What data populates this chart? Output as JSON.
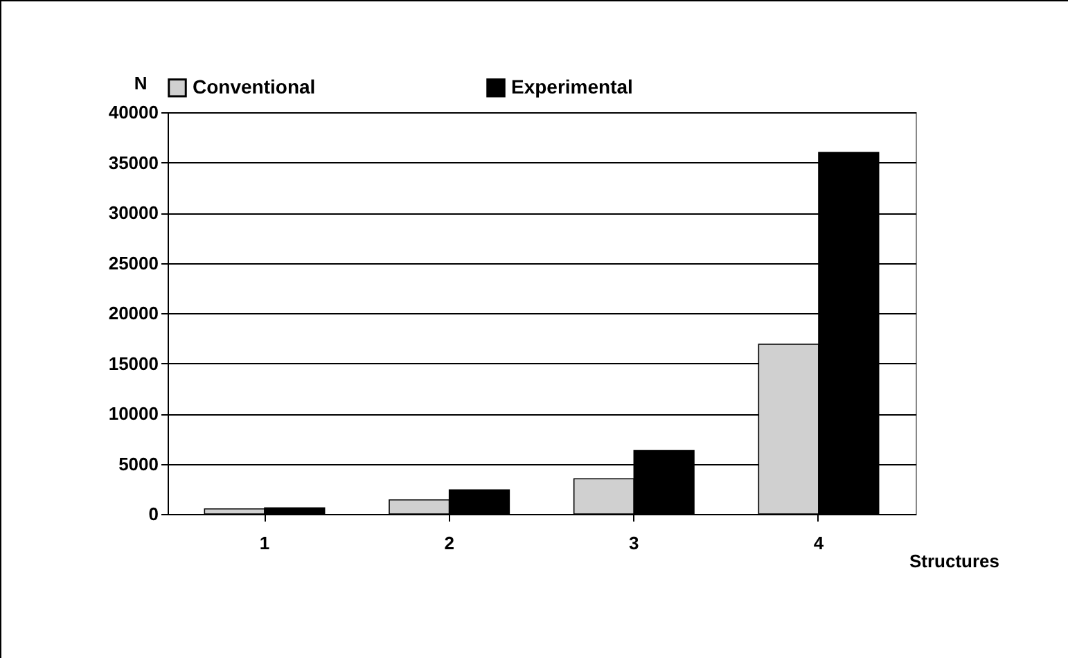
{
  "chart_data": {
    "type": "bar",
    "xlabel": "Structures",
    "ylabel": "N",
    "categories": [
      "1",
      "2",
      "3",
      "4"
    ],
    "series": [
      {
        "name": "Conventional",
        "color": "#d0d0d0",
        "values": [
          500,
          1400,
          3500,
          16900
        ]
      },
      {
        "name": "Experimental",
        "color": "#000000",
        "values": [
          600,
          2400,
          6300,
          36000
        ]
      }
    ],
    "ylim": [
      0,
      40000
    ],
    "yticks": [
      0,
      5000,
      10000,
      15000,
      20000,
      25000,
      30000,
      35000,
      40000
    ],
    "grid": "y",
    "legend": "top"
  }
}
